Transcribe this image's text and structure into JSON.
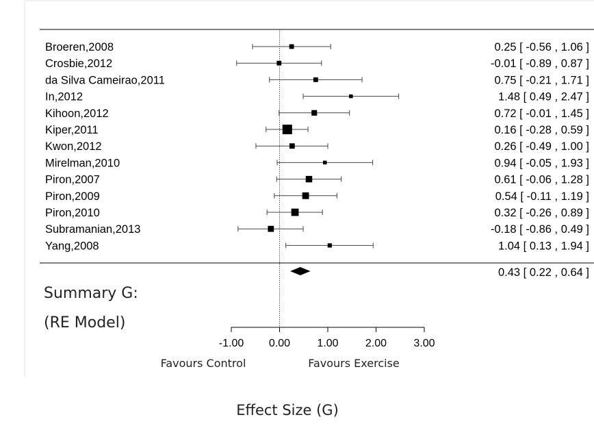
{
  "chart_data": {
    "type": "forest",
    "xlabel": "Effect Size (G)",
    "xlim": [
      -1.0,
      3.0
    ],
    "xticks": [
      "-1.00",
      "0.00",
      "1.00",
      "2.00",
      "3.00"
    ],
    "xtick_values": [
      -1,
      0,
      1,
      2,
      3
    ],
    "favours_left": "Favours Control",
    "favours_right": "Favours Exercise",
    "studies": [
      {
        "label": "Broeren,2008",
        "estimate": 0.25,
        "lower": -0.56,
        "upper": 1.06,
        "ci_text": "0.25 [ -0.56 , 1.06 ]",
        "weight": 1
      },
      {
        "label": "Crosbie,2012",
        "estimate": -0.01,
        "lower": -0.89,
        "upper": 0.87,
        "ci_text": "-0.01 [ -0.89 , 0.87 ]",
        "weight": 1
      },
      {
        "label": "da Silva Cameirao,2011",
        "estimate": 0.75,
        "lower": -0.21,
        "upper": 1.71,
        "ci_text": "0.75 [ -0.21 , 1.71 ]",
        "weight": 1
      },
      {
        "label": "In,2012",
        "estimate": 1.48,
        "lower": 0.49,
        "upper": 2.47,
        "ci_text": "1.48 [  0.49 , 2.47 ]",
        "weight": 0.6
      },
      {
        "label": "Kihoon,2012",
        "estimate": 0.72,
        "lower": -0.01,
        "upper": 1.45,
        "ci_text": "0.72 [ -0.01 , 1.45 ]",
        "weight": 1.4
      },
      {
        "label": "Kiper,2011",
        "estimate": 0.16,
        "lower": -0.28,
        "upper": 0.59,
        "ci_text": "0.16 [ -0.28 , 0.59 ]",
        "weight": 3.2
      },
      {
        "label": "Kwon,2012",
        "estimate": 0.26,
        "lower": -0.49,
        "upper": 1.0,
        "ci_text": "0.26 [ -0.49 , 1.00 ]",
        "weight": 1.3
      },
      {
        "label": "Mirelman,2010",
        "estimate": 0.94,
        "lower": -0.05,
        "upper": 1.93,
        "ci_text": "0.94 [ -0.05 , 1.93 ]",
        "weight": 0.6
      },
      {
        "label": "Piron,2007",
        "estimate": 0.61,
        "lower": -0.06,
        "upper": 1.28,
        "ci_text": "0.61 [ -0.06 , 1.28 ]",
        "weight": 1.8
      },
      {
        "label": "Piron,2009",
        "estimate": 0.54,
        "lower": -0.11,
        "upper": 1.19,
        "ci_text": "0.54 [ -0.11 , 1.19 ]",
        "weight": 1.9
      },
      {
        "label": "Piron,2010",
        "estimate": 0.32,
        "lower": -0.26,
        "upper": 0.89,
        "ci_text": "0.32 [ -0.26 , 0.89 ]",
        "weight": 2.2
      },
      {
        "label": "Subramanian,2013",
        "estimate": -0.18,
        "lower": -0.86,
        "upper": 0.49,
        "ci_text": "-0.18 [ -0.86 , 0.49 ]",
        "weight": 1.6
      },
      {
        "label": "Yang,2008",
        "estimate": 1.04,
        "lower": 0.13,
        "upper": 1.94,
        "ci_text": "1.04 [  0.13 , 1.94 ]",
        "weight": 0.8
      }
    ],
    "summary": {
      "label_line1": "Summary G:",
      "label_line2": "(RE Model)",
      "estimate": 0.43,
      "lower": 0.22,
      "upper": 0.64,
      "ci_text": "0.43 [  0.22 , 0.64 ]"
    }
  }
}
